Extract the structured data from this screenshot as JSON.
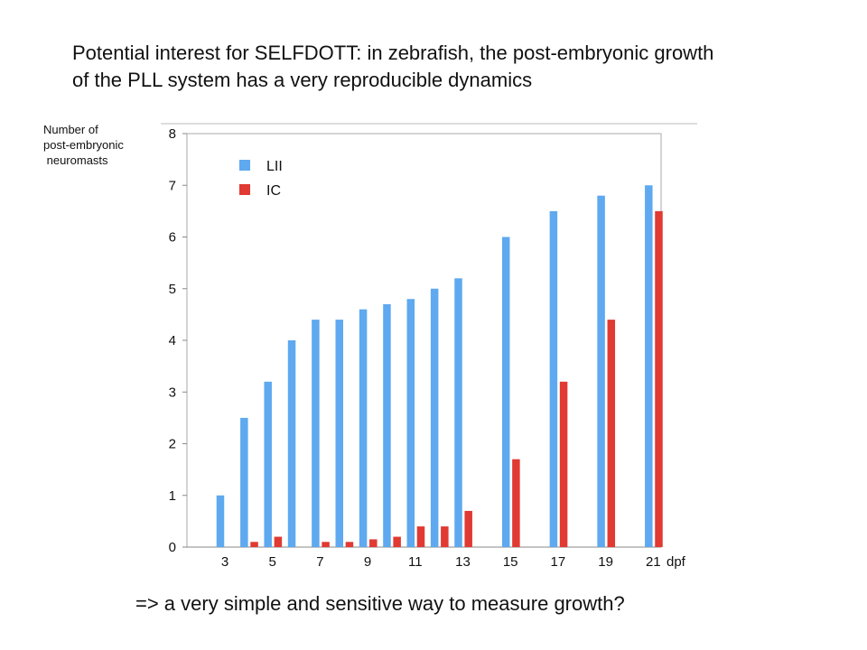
{
  "title": {
    "line1": "Potential interest for SELFDOTT: in zebrafish, the post-embryonic growth",
    "line2": "of the PLL system has a very reproducible dynamics"
  },
  "footer": "=>  a very simple and sensitive way to measure growth?",
  "chart_data": {
    "type": "bar",
    "title": "",
    "ylabel": "Number of\npost-embryonic\n neuromasts",
    "xlabel": "dpf",
    "ylim": [
      0,
      8
    ],
    "yticks": [
      0,
      1,
      2,
      3,
      4,
      5,
      6,
      7,
      8
    ],
    "x": [
      3,
      4,
      5,
      6,
      7,
      8,
      9,
      10,
      11,
      12,
      13,
      15,
      17,
      19,
      21
    ],
    "xticks": [
      3,
      5,
      7,
      9,
      11,
      13,
      15,
      17,
      19,
      21
    ],
    "xtick_labels": [
      "3",
      "5",
      "7",
      "9",
      "11",
      "13",
      "15",
      "17",
      "19",
      "21"
    ],
    "series": [
      {
        "name": "LII",
        "color": "#5ea9ef",
        "values": [
          1,
          2.5,
          3.2,
          4,
          4.4,
          4.4,
          4.6,
          4.7,
          4.8,
          5,
          5.2,
          6,
          6.5,
          6.8,
          7
        ]
      },
      {
        "name": "IC",
        "color": "#e03a32",
        "values": [
          0,
          0.1,
          0.2,
          0,
          0.1,
          0.1,
          0.15,
          0.2,
          0.4,
          0.4,
          0.7,
          1.7,
          3.2,
          4.4,
          6.5
        ]
      }
    ],
    "grid": false,
    "legend_position": "top-left"
  }
}
